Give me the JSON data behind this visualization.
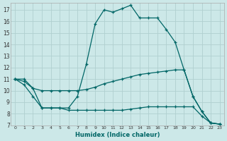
{
  "xlabel": "Humidex (Indice chaleur)",
  "background_color": "#cce8e8",
  "grid_color": "#b0d0d0",
  "line_color": "#006666",
  "xlim": [
    -0.5,
    23.5
  ],
  "ylim": [
    7,
    17.6
  ],
  "yticks": [
    7,
    8,
    9,
    10,
    11,
    12,
    13,
    14,
    15,
    16,
    17
  ],
  "xticks": [
    0,
    1,
    2,
    3,
    4,
    5,
    6,
    7,
    8,
    9,
    10,
    11,
    12,
    13,
    14,
    15,
    16,
    17,
    18,
    19,
    20,
    21,
    22,
    23
  ],
  "series": [
    {
      "x": [
        0,
        1,
        2,
        3,
        4,
        5,
        6,
        7,
        8,
        9,
        10,
        11,
        12,
        13,
        14,
        15,
        16,
        17,
        18,
        19,
        20,
        21,
        22,
        23
      ],
      "y": [
        11,
        11,
        10.2,
        8.5,
        8.5,
        8.5,
        8.5,
        9.5,
        12.3,
        15.8,
        17.0,
        16.8,
        17.1,
        17.4,
        16.3,
        16.3,
        16.3,
        15.3,
        14.2,
        11.8,
        9.5,
        8.2,
        7.2,
        7.1
      ]
    },
    {
      "x": [
        0,
        1,
        2,
        3,
        4,
        5,
        6,
        7,
        8,
        9,
        10,
        11,
        12,
        13,
        14,
        15,
        16,
        17,
        18,
        19,
        20,
        21,
        22,
        23
      ],
      "y": [
        11,
        10.8,
        10.2,
        10.0,
        10.0,
        10.0,
        10.0,
        10.0,
        10.1,
        10.3,
        10.6,
        10.8,
        11.0,
        11.2,
        11.4,
        11.5,
        11.6,
        11.7,
        11.8,
        11.8,
        9.5,
        8.2,
        7.2,
        7.1
      ]
    },
    {
      "x": [
        0,
        1,
        2,
        3,
        4,
        5,
        6,
        7,
        8,
        9,
        10,
        11,
        12,
        13,
        14,
        15,
        16,
        17,
        18,
        19,
        20,
        21,
        22,
        23
      ],
      "y": [
        11,
        10.5,
        9.5,
        8.5,
        8.5,
        8.5,
        8.3,
        8.3,
        8.3,
        8.3,
        8.3,
        8.3,
        8.3,
        8.4,
        8.5,
        8.6,
        8.6,
        8.6,
        8.6,
        8.6,
        8.6,
        7.8,
        7.2,
        7.1
      ]
    }
  ]
}
